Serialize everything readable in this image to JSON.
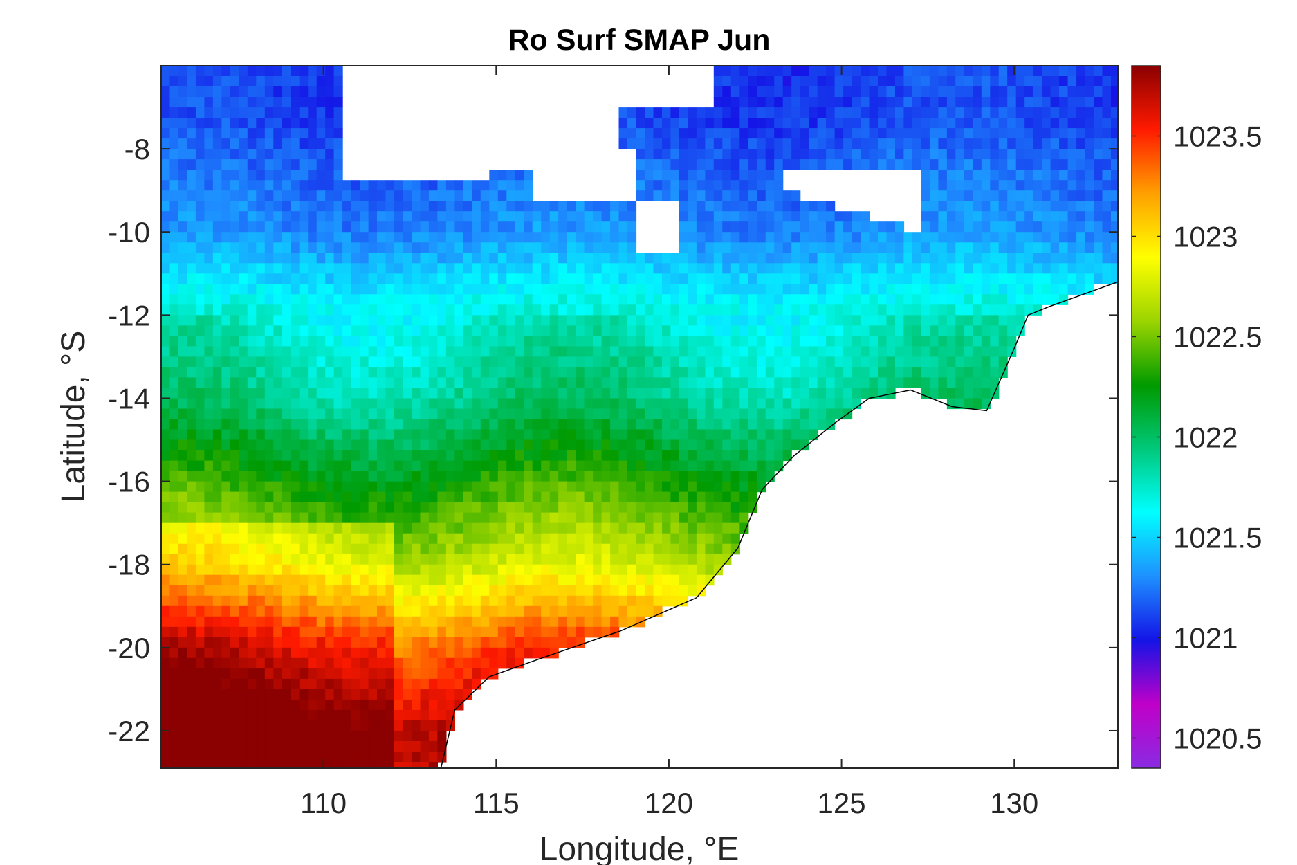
{
  "chart_data": {
    "type": "heatmap",
    "title": "Ro Surf SMAP Jun",
    "xlabel": "Longitude, °E",
    "ylabel": "Latitude, °S",
    "xlim": [
      105.3,
      133.0
    ],
    "ylim": [
      -22.9,
      -6.0
    ],
    "xticks": [
      110,
      115,
      120,
      125,
      130
    ],
    "xtick_labels": [
      "110",
      "115",
      "120",
      "125",
      "130"
    ],
    "yticks": [
      -8,
      -10,
      -12,
      -14,
      -16,
      -18,
      -20,
      -22
    ],
    "ytick_labels": [
      "-8",
      "-10",
      "-12",
      "-14",
      "-16",
      "-18",
      "-20",
      "-22"
    ],
    "colorbar": {
      "clim": [
        1020.35,
        1023.85
      ],
      "ticks": [
        1020.5,
        1021,
        1021.5,
        1022,
        1022.5,
        1023,
        1023.5
      ],
      "tick_labels": [
        "1020.5",
        "1021",
        "1021.5",
        "1022",
        "1022.5",
        "1023",
        "1023.5"
      ],
      "colormap": [
        "#8a2be2",
        "#c000c8",
        "#1414e6",
        "#1e90ff",
        "#00ffff",
        "#00c87a",
        "#009a00",
        "#9bd400",
        "#ffff00",
        "#ffa000",
        "#ff1a00",
        "#8b0000"
      ]
    },
    "value_field_description_by_latitude": [
      {
        "lat": -7,
        "value": 1021.1
      },
      {
        "lat": -10,
        "value": 1021.3
      },
      {
        "lat": -12,
        "value": 1021.7
      },
      {
        "lat": -14,
        "value": 1021.9
      },
      {
        "lat": -16,
        "value": 1022.3
      },
      {
        "lat": -18,
        "value": 1022.7
      },
      {
        "lat": -20,
        "value": 1023.4
      },
      {
        "lat": -22,
        "value": 1023.8
      }
    ],
    "grid": false,
    "coastline": true
  }
}
